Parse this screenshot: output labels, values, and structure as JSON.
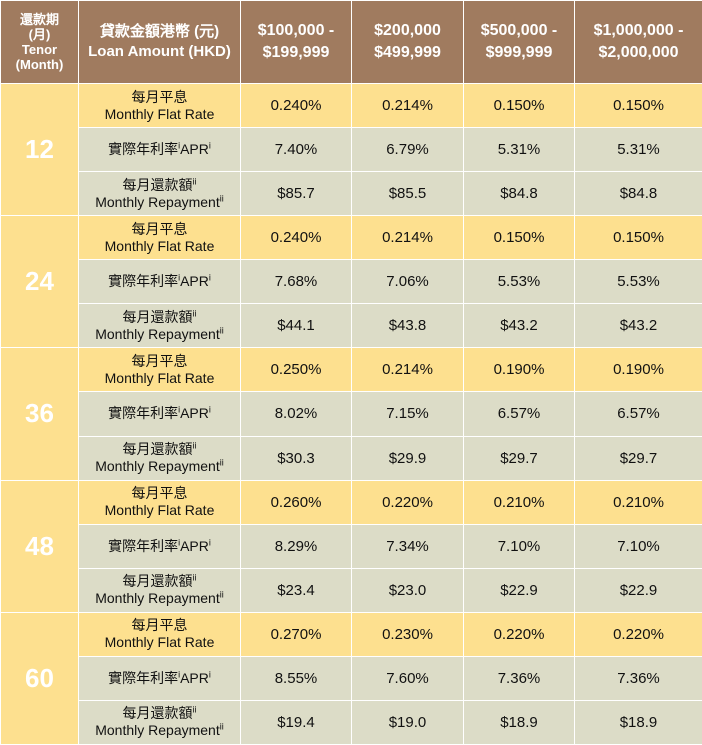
{
  "header": {
    "tenor_cn": "還款期",
    "tenor_cn2": "(月)",
    "tenor_en": "Tenor",
    "tenor_en2": "(Month)",
    "amount_cn": "貸款金額港幣 (元)",
    "amount_en": "Loan Amount (HKD)",
    "bands": [
      {
        "line1": "$100,000 -",
        "line2": "$199,999"
      },
      {
        "line1": "$200,000",
        "line2": "$499,999"
      },
      {
        "line1": "$500,000 -",
        "line2": "$999,999"
      },
      {
        "line1": "$1,000,000 -",
        "line2": "$2,000,000"
      }
    ]
  },
  "labels": {
    "flat_cn": "每月平息",
    "flat_en": "Monthly Flat Rate",
    "apr_text": "實際年利率",
    "apr_sup1": "i",
    "apr_en": "APR",
    "apr_sup2": "i",
    "rep_cn": "每月還款額",
    "rep_sup": "ii",
    "rep_en": "Monthly Repayment",
    "rep_en_sup": "ii"
  },
  "rows": [
    {
      "tenor": "12",
      "flat": [
        "0.240%",
        "0.214%",
        "0.150%",
        "0.150%"
      ],
      "apr": [
        "7.40%",
        "6.79%",
        "5.31%",
        "5.31%"
      ],
      "repayment": [
        "$85.7",
        "$85.5",
        "$84.8",
        "$84.8"
      ]
    },
    {
      "tenor": "24",
      "flat": [
        "0.240%",
        "0.214%",
        "0.150%",
        "0.150%"
      ],
      "apr": [
        "7.68%",
        "7.06%",
        "5.53%",
        "5.53%"
      ],
      "repayment": [
        "$44.1",
        "$43.8",
        "$43.2",
        "$43.2"
      ]
    },
    {
      "tenor": "36",
      "flat": [
        "0.250%",
        "0.214%",
        "0.190%",
        "0.190%"
      ],
      "apr": [
        "8.02%",
        "7.15%",
        "6.57%",
        "6.57%"
      ],
      "repayment": [
        "$30.3",
        "$29.9",
        "$29.7",
        "$29.7"
      ]
    },
    {
      "tenor": "48",
      "flat": [
        "0.260%",
        "0.220%",
        "0.210%",
        "0.210%"
      ],
      "apr": [
        "8.29%",
        "7.34%",
        "7.10%",
        "7.10%"
      ],
      "repayment": [
        "$23.4",
        "$23.0",
        "$22.9",
        "$22.9"
      ]
    },
    {
      "tenor": "60",
      "flat": [
        "0.270%",
        "0.230%",
        "0.220%",
        "0.220%"
      ],
      "apr": [
        "8.55%",
        "7.60%",
        "7.36%",
        "7.36%"
      ],
      "repayment": [
        "$19.4",
        "$19.0",
        "$18.9",
        "$18.9"
      ]
    }
  ],
  "colors": {
    "header_bg": "#a07b5f",
    "flat_row_bg": "#fde08f",
    "other_row_bg": "#dcdcc7",
    "border": "#ffffff"
  }
}
